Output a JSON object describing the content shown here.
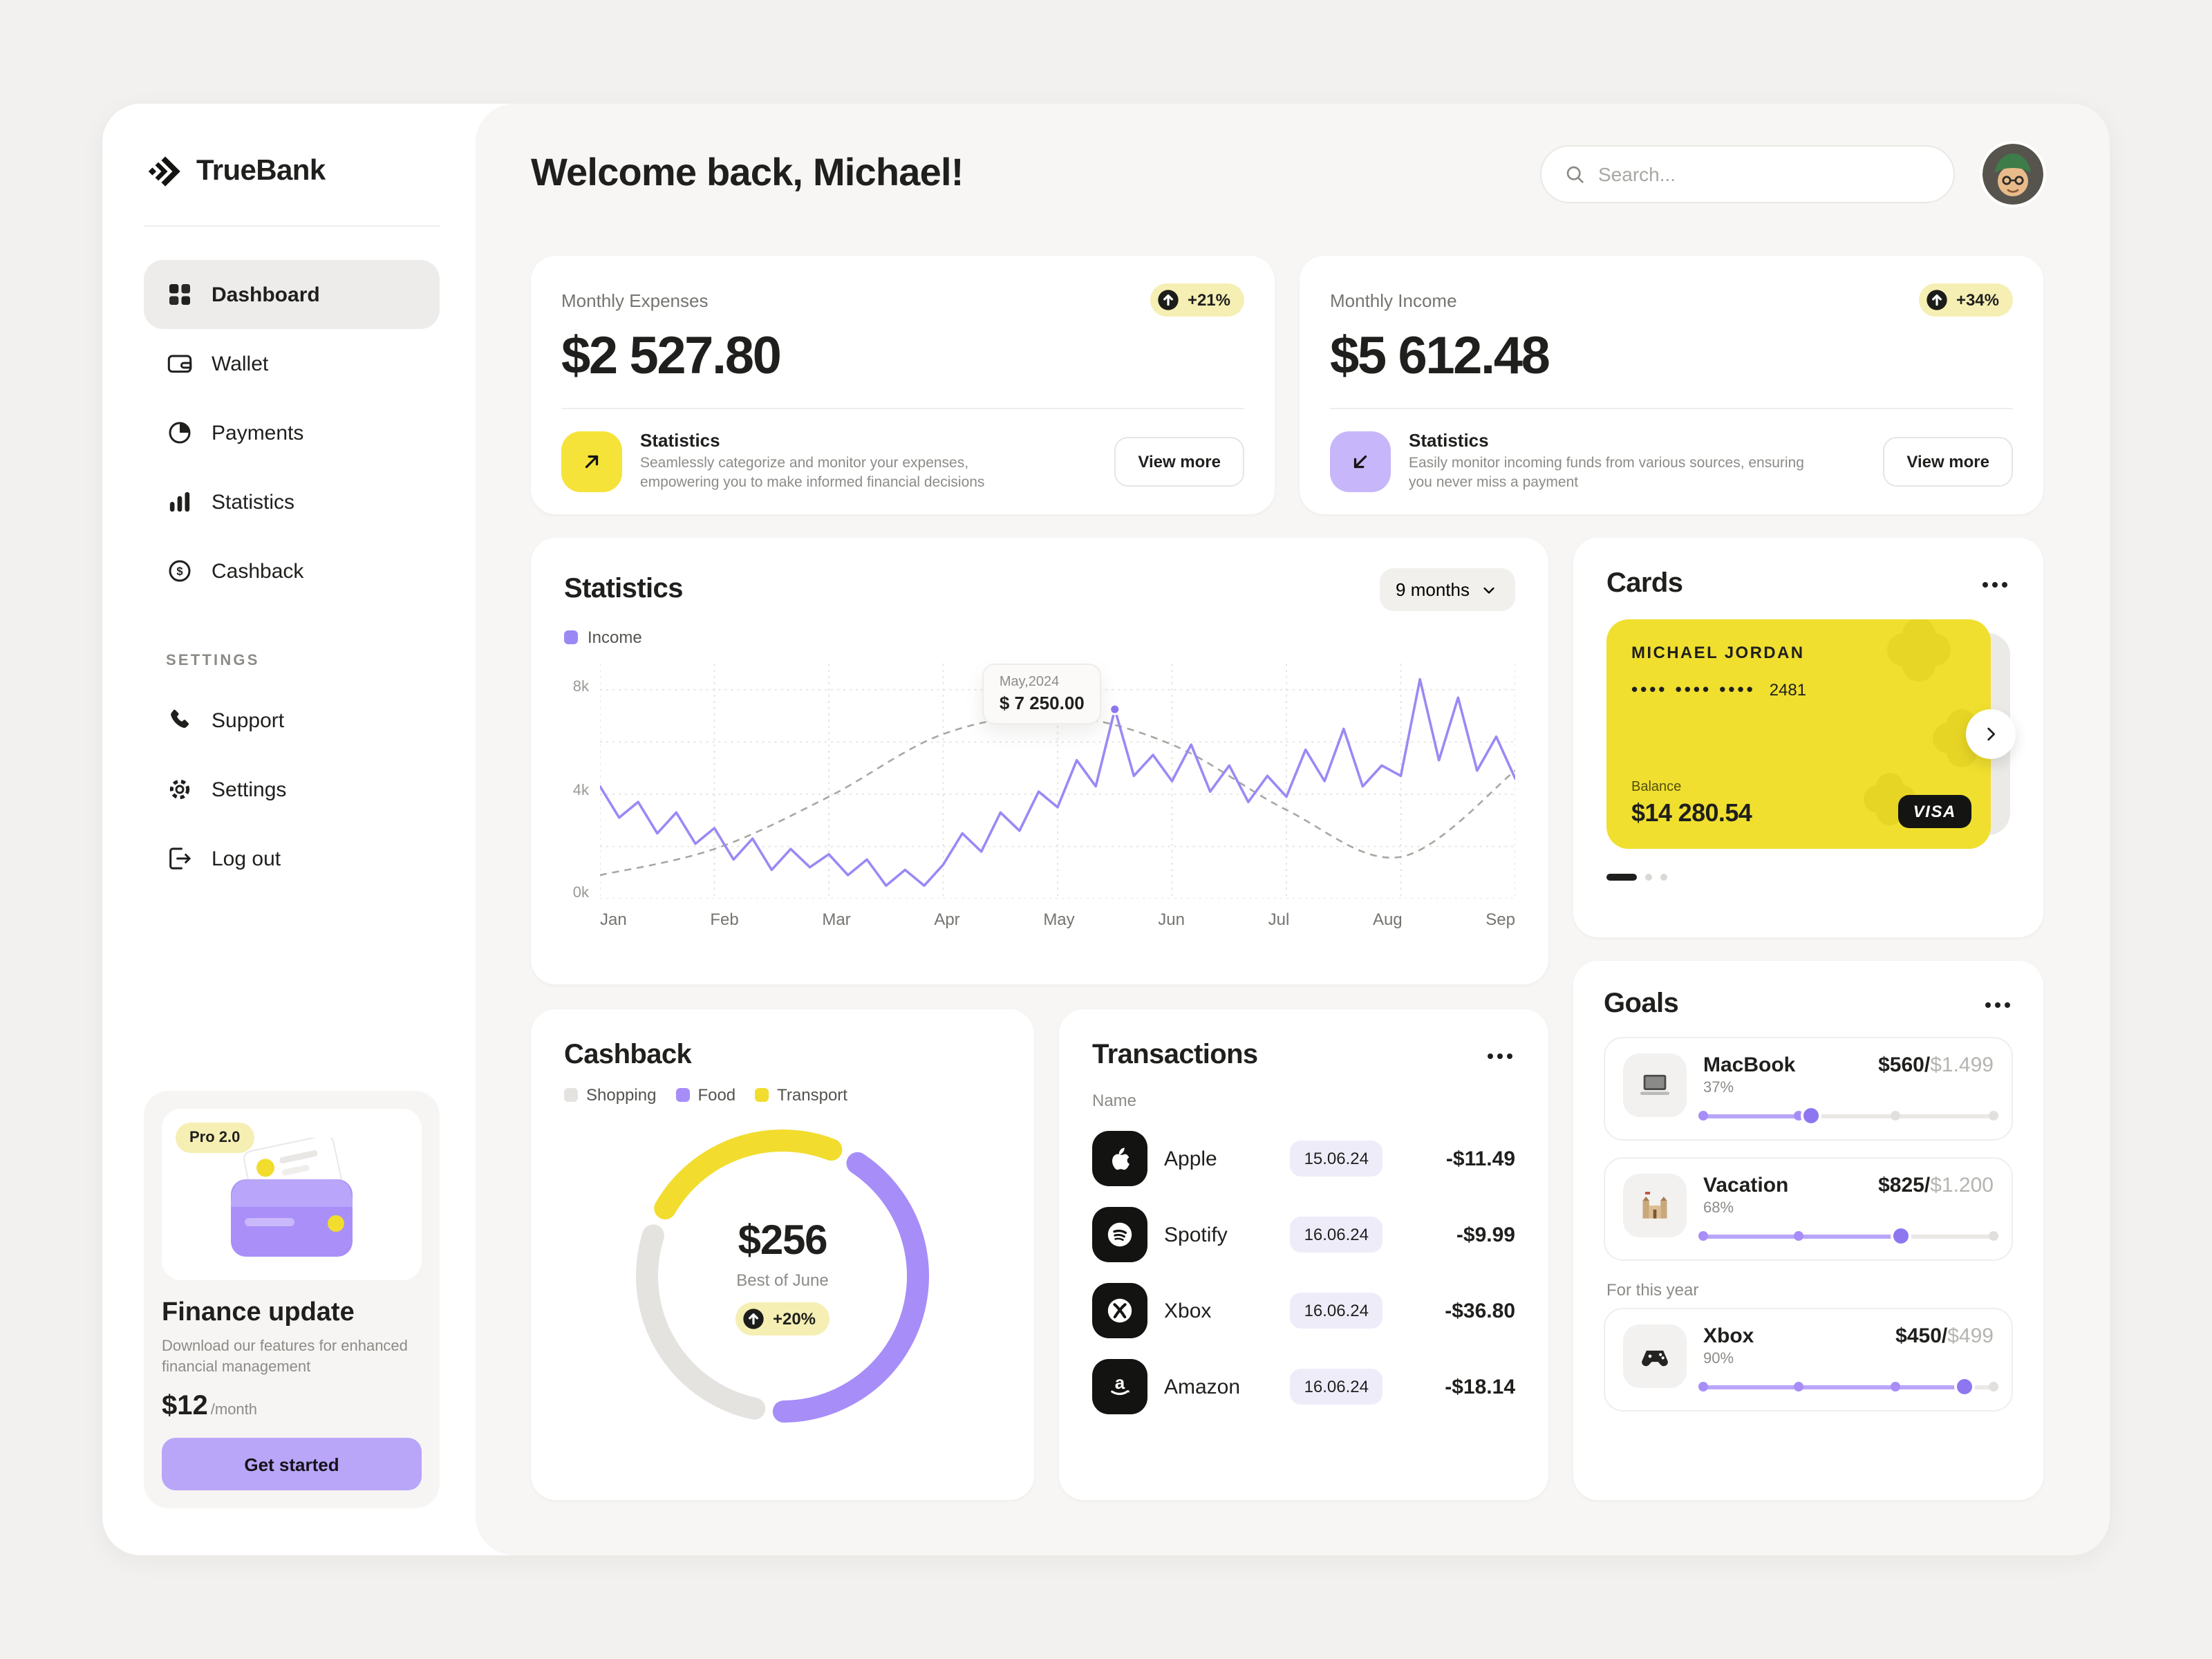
{
  "brand": {
    "name": "TrueBank"
  },
  "sidebar": {
    "nav": [
      {
        "label": "Dashboard"
      },
      {
        "label": "Wallet"
      },
      {
        "label": "Payments"
      },
      {
        "label": "Statistics"
      },
      {
        "label": "Cashback"
      }
    ],
    "section_label": "SETTINGS",
    "settings_nav": [
      {
        "label": "Support"
      },
      {
        "label": "Settings"
      },
      {
        "label": "Log out"
      }
    ],
    "promo": {
      "badge": "Pro 2.0",
      "title": "Finance update",
      "description": "Download our features for enhanced financial management",
      "price": "$12",
      "price_period": "/month",
      "cta": "Get started"
    }
  },
  "header": {
    "greeting": "Welcome back, Michael!",
    "search_placeholder": "Search..."
  },
  "summary": {
    "expenses": {
      "label": "Monthly Expenses",
      "value": "$2 527.80",
      "change": "+21%",
      "section_title": "Statistics",
      "description": "Seamlessly categorize and monitor your expenses, empowering you to make informed financial decisions",
      "cta": "View more"
    },
    "income": {
      "label": "Monthly Income",
      "value": "$5 612.48",
      "change": "+34%",
      "section_title": "Statistics",
      "description": "Easily monitor incoming funds from various sources, ensuring you never miss a payment",
      "cta": "View more"
    }
  },
  "statistics_card": {
    "title": "Statistics",
    "period": "9 months",
    "legend": "Income"
  },
  "cards_panel": {
    "title": "Cards",
    "card": {
      "holder": "MICHAEL JORDAN",
      "masked_dots": "•••• •••• ••••",
      "last4": "2481",
      "balance_label": "Balance",
      "balance": "$14 280.54",
      "network": "VISA"
    }
  },
  "cashback_card": {
    "title": "Cashback",
    "legend": [
      {
        "label": "Shopping",
        "color": "#E4E3E0"
      },
      {
        "label": "Food",
        "color": "#A78DF8"
      },
      {
        "label": "Transport",
        "color": "#F2DC2E"
      }
    ]
  },
  "transactions": {
    "title": "Transactions",
    "column_name": "Name",
    "rows": [
      {
        "name": "Apple",
        "date": "15.06.24",
        "amount": "-$11.49"
      },
      {
        "name": "Spotify",
        "date": "16.06.24",
        "amount": "-$9.99"
      },
      {
        "name": "Xbox",
        "date": "16.06.24",
        "amount": "-$36.80"
      },
      {
        "name": "Amazon",
        "date": "16.06.24",
        "amount": "-$18.14"
      }
    ]
  },
  "goals": {
    "title": "Goals",
    "items": [
      {
        "name": "MacBook",
        "percent": 37,
        "percent_label": "37%",
        "current": "$560/",
        "target": "$1.499"
      },
      {
        "name": "Vacation",
        "percent": 68,
        "percent_label": "68%",
        "current": "$825/",
        "target": "$1.200"
      }
    ],
    "year_label": "For this year",
    "year_items": [
      {
        "name": "Xbox",
        "percent": 90,
        "percent_label": "90%",
        "current": "$450/",
        "target": "$499"
      }
    ]
  },
  "colors": {
    "accent_yellow": "#F0DF2F",
    "accent_purple": "#A78DF8",
    "pale_yellow": "#F6EFB4",
    "pale_purple": "#EFECFA"
  },
  "chart_data": [
    {
      "type": "line",
      "title": "Statistics — Income over 9 months",
      "x_ticks": [
        "Jan",
        "Feb",
        "Mar",
        "Apr",
        "May",
        "Jun",
        "Jul",
        "Aug",
        "Sep"
      ],
      "y_ticks": [
        "8k",
        "4k",
        "0k"
      ],
      "ylim": [
        0,
        9
      ],
      "unit": "k USD",
      "grid": true,
      "series": [
        {
          "name": "Income",
          "color": "#9C88F5",
          "values": [
            4.3,
            3.1,
            3.7,
            2.5,
            3.3,
            2.1,
            2.7,
            1.5,
            2.3,
            1.1,
            1.9,
            1.2,
            1.7,
            0.9,
            1.5,
            0.5,
            1.1,
            0.5,
            1.3,
            2.5,
            1.8,
            3.3,
            2.6,
            4.1,
            3.5,
            5.3,
            4.3,
            7.25,
            4.7,
            5.5,
            4.5,
            5.9,
            4.1,
            5.1,
            3.7,
            4.7,
            3.9,
            5.7,
            4.5,
            6.5,
            4.3,
            5.1,
            4.7,
            8.4,
            5.3,
            7.7,
            4.9,
            6.2,
            4.6
          ]
        },
        {
          "name": "Trend",
          "color": "#A9A7A2",
          "style": "dashed",
          "x": [
            0,
            6,
            12,
            18,
            24,
            30,
            36,
            42,
            48
          ],
          "values": [
            0.9,
            1.9,
            3.9,
            6.3,
            7.0,
            5.9,
            3.4,
            1.6,
            4.9
          ]
        }
      ],
      "annotation": {
        "x_index": 27,
        "label": "May,2024",
        "value": "$ 7 250.00"
      }
    },
    {
      "type": "donut",
      "title": "Cashback by category",
      "segments": [
        {
          "label": "Transport",
          "color": "#F2DC2E",
          "percent": 26
        },
        {
          "label": "Food",
          "color": "#A78DF8",
          "percent": 44
        },
        {
          "label": "Shopping",
          "color": "#E4E3E0",
          "percent": 30
        }
      ],
      "center_value": "$256",
      "center_label": "Best of June",
      "badge": "+20%"
    }
  ]
}
